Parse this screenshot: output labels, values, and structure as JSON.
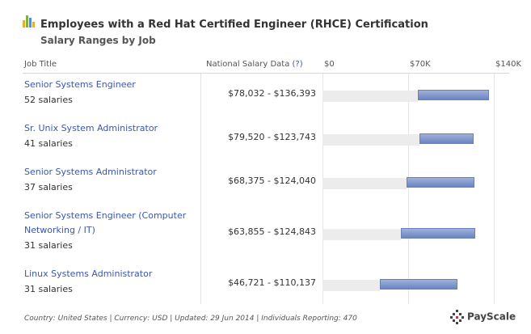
{
  "header": {
    "title": "Employees with a Red Hat Certified Engineer (RHCE) Certification",
    "subtitle": "Salary Ranges by Job"
  },
  "columns": {
    "job_title": "Job Title",
    "salary_data": "National Salary Data",
    "help": "(?)"
  },
  "chart_data": {
    "type": "bar",
    "orientation": "horizontal range",
    "xlim": [
      0,
      140000
    ],
    "ticks": [
      {
        "value": 0,
        "label": "$0"
      },
      {
        "value": 70000,
        "label": "$70K"
      },
      {
        "value": 140000,
        "label": "$140K"
      }
    ],
    "rows": [
      {
        "job": "Senior Systems Engineer",
        "count": "52 salaries",
        "low": 78032,
        "high": 136393,
        "range": "$78,032 - $136,393"
      },
      {
        "job": "Sr. Unix System Administrator",
        "count": "41 salaries",
        "low": 79520,
        "high": 123743,
        "range": "$79,520 - $123,743"
      },
      {
        "job": "Senior Systems Administrator",
        "count": "37 salaries",
        "low": 68375,
        "high": 124040,
        "range": "$68,375 - $124,040"
      },
      {
        "job": "Senior Systems Engineer (Computer Networking / IT)",
        "count": "31 salaries",
        "low": 63855,
        "high": 124843,
        "range": "$63,855 - $124,843"
      },
      {
        "job": "Linux Systems Administrator",
        "count": "31 salaries",
        "low": 46721,
        "high": 110137,
        "range": "$46,721 - $110,137"
      }
    ]
  },
  "footer": {
    "text": "Country: United States  |  Currency: USD  |  Updated: 29 Jun 2014  |  Individuals Reporting: 470",
    "brand": "PayScale"
  }
}
